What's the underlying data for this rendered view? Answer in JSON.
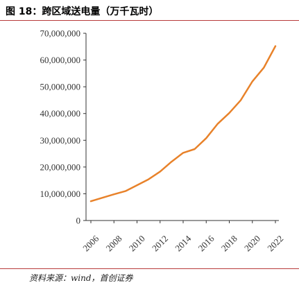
{
  "header": {
    "title": "图 18：跨区域送电量（万千瓦时）"
  },
  "footer": {
    "source": "资料来源：wind，首创证券"
  },
  "colors": {
    "line": "#e8822a",
    "rule": "#b83a3a",
    "axis": "#333333"
  },
  "chart_data": {
    "type": "line",
    "title": "",
    "xlabel": "",
    "ylabel": "",
    "x": [
      2006,
      2007,
      2008,
      2009,
      2010,
      2011,
      2012,
      2013,
      2014,
      2015,
      2016,
      2017,
      2018,
      2019,
      2020,
      2021,
      2022
    ],
    "series": [
      {
        "values": [
          7200000,
          8500000,
          9800000,
          11000000,
          13200000,
          15400000,
          18300000,
          22000000,
          25300000,
          26700000,
          30800000,
          36200000,
          40200000,
          45000000,
          52000000,
          57200000,
          65200000
        ]
      }
    ],
    "ylim": [
      0,
      70000000
    ],
    "y_ticks": [
      "0",
      "10,000,000",
      "20,000,000",
      "30,000,000",
      "40,000,000",
      "50,000,000",
      "60,000,000",
      "70,000,000"
    ],
    "y_tick_values": [
      0,
      10000000,
      20000000,
      30000000,
      40000000,
      50000000,
      60000000,
      70000000
    ],
    "x_ticks": [
      "2006",
      "2008",
      "2010",
      "2012",
      "2014",
      "2016",
      "2018",
      "2020",
      "2022"
    ],
    "x_tick_values": [
      2006,
      2008,
      2010,
      2012,
      2014,
      2016,
      2018,
      2020,
      2022
    ],
    "grid": false,
    "legend": "none"
  }
}
